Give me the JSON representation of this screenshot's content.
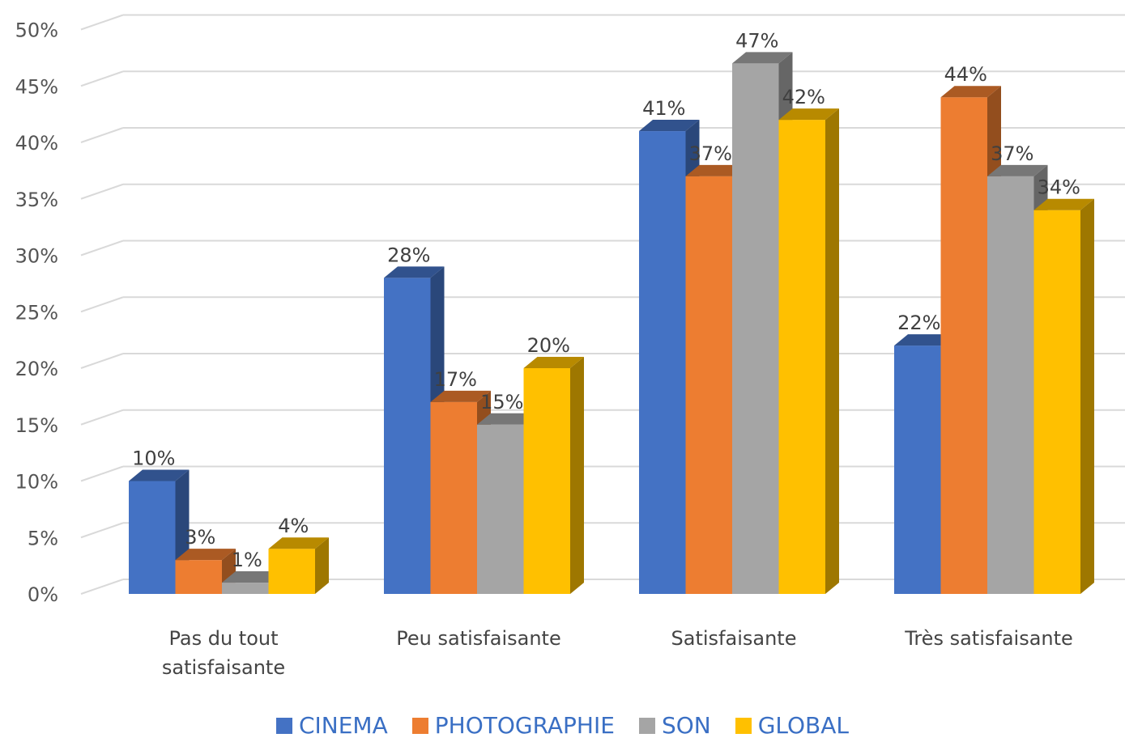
{
  "chart_data": {
    "type": "bar",
    "categories": [
      [
        "Pas du tout",
        "satisfaisante"
      ],
      [
        "Peu satisfaisante"
      ],
      [
        "Satisfaisante"
      ],
      [
        "Très satisfaisante"
      ]
    ],
    "series": [
      {
        "name": "CINEMA",
        "color": "#4472C4",
        "values": [
          10,
          28,
          41,
          22
        ]
      },
      {
        "name": "PHOTOGRAPHIE",
        "color": "#ED7D31",
        "values": [
          3,
          17,
          37,
          44
        ]
      },
      {
        "name": "SON",
        "color": "#A5A5A5",
        "values": [
          1,
          15,
          47,
          37
        ]
      },
      {
        "name": "GLOBAL",
        "color": "#FFC000",
        "values": [
          4,
          20,
          42,
          34
        ]
      }
    ],
    "yticks": [
      "0%",
      "5%",
      "10%",
      "15%",
      "20%",
      "25%",
      "30%",
      "35%",
      "40%",
      "45%",
      "50%"
    ],
    "ylim": [
      0,
      50
    ],
    "value_suffix": "%",
    "legend_position": "bottom",
    "grid": true,
    "style": "3d-clustered-column"
  }
}
